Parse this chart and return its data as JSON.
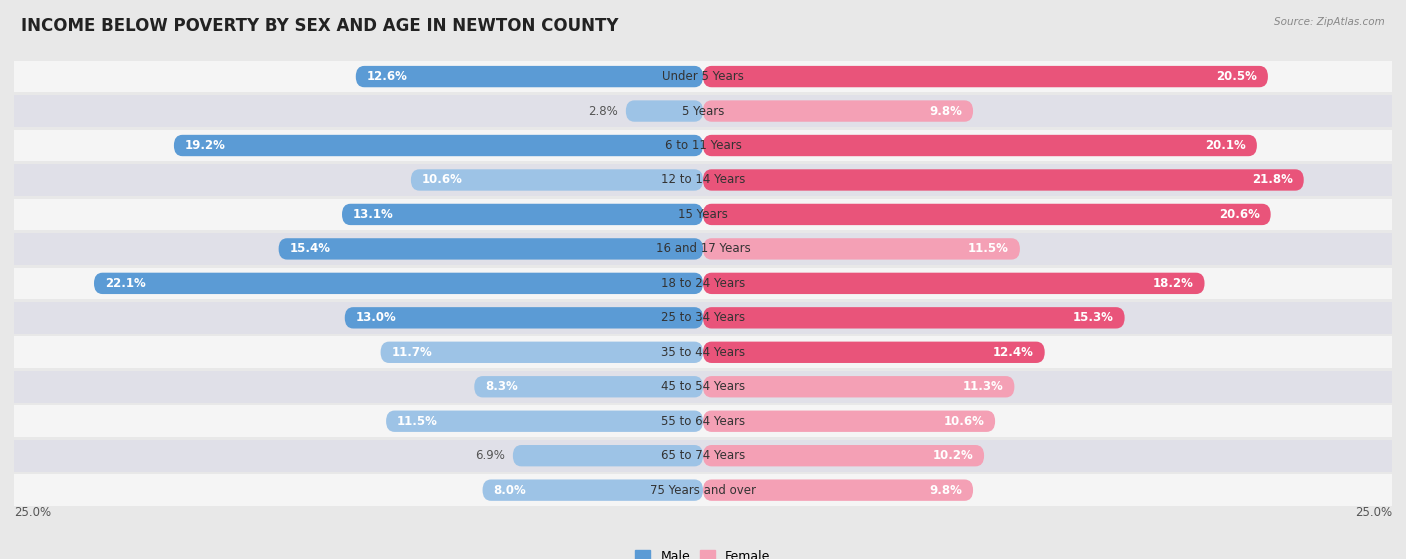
{
  "title": "INCOME BELOW POVERTY BY SEX AND AGE IN NEWTON COUNTY",
  "source": "Source: ZipAtlas.com",
  "categories": [
    "Under 5 Years",
    "5 Years",
    "6 to 11 Years",
    "12 to 14 Years",
    "15 Years",
    "16 and 17 Years",
    "18 to 24 Years",
    "25 to 34 Years",
    "35 to 44 Years",
    "45 to 54 Years",
    "55 to 64 Years",
    "65 to 74 Years",
    "75 Years and over"
  ],
  "male": [
    12.6,
    2.8,
    19.2,
    10.6,
    13.1,
    15.4,
    22.1,
    13.0,
    11.7,
    8.3,
    11.5,
    6.9,
    8.0
  ],
  "female": [
    20.5,
    9.8,
    20.1,
    21.8,
    20.6,
    11.5,
    18.2,
    15.3,
    12.4,
    11.3,
    10.6,
    10.2,
    9.8
  ],
  "male_color_dark": "#5b9bd5",
  "male_color_light": "#9dc3e6",
  "female_color_dark": "#e9547a",
  "female_color_light": "#f4a0b5",
  "background_color": "#e8e8e8",
  "row_bg_even": "#f5f5f5",
  "row_bg_odd": "#e0e0e8",
  "xlim": 25.0,
  "legend_labels": [
    "Male",
    "Female"
  ],
  "title_fontsize": 12,
  "label_fontsize": 8.5,
  "category_fontsize": 8.5,
  "inside_label_threshold": 7.0
}
